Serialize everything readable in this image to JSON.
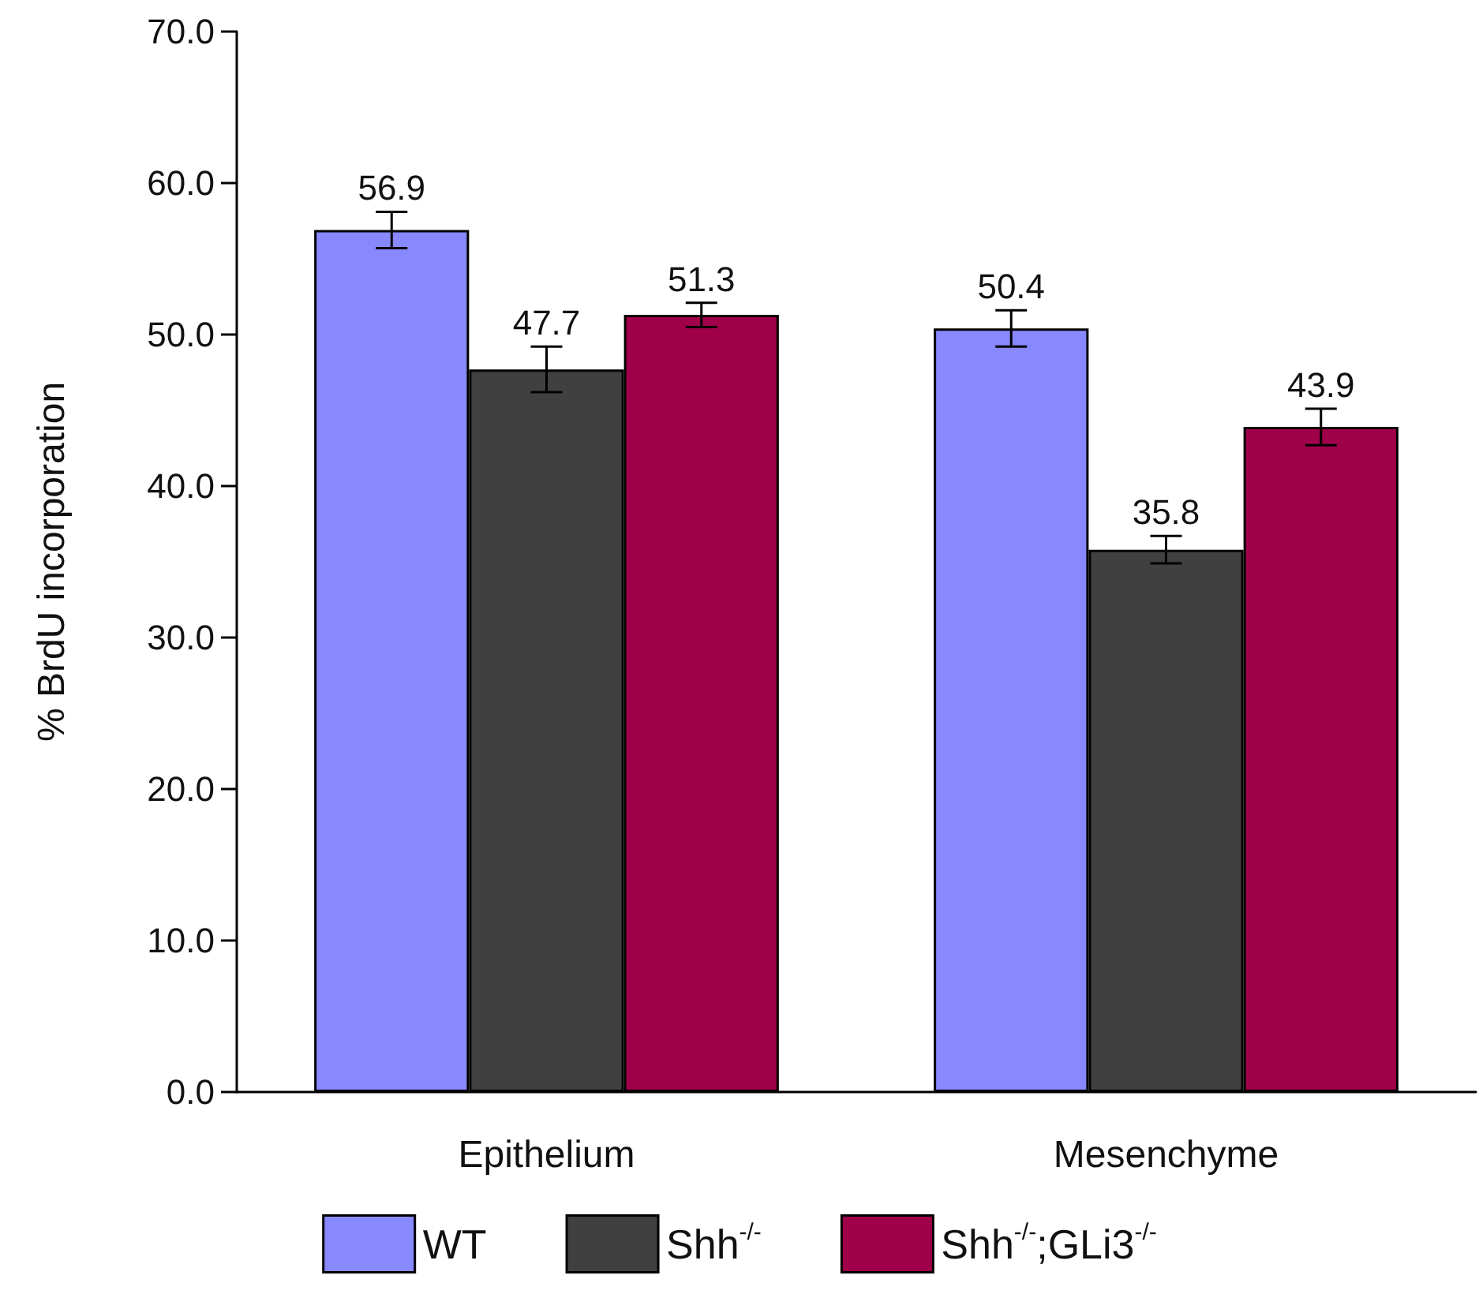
{
  "chart_data": {
    "type": "bar",
    "ylabel": "% BrdU incorporation",
    "categories": [
      "Epithelium",
      "Mesenchyme"
    ],
    "series": [
      {
        "name": "WT",
        "color": "#8888ff",
        "values": [
          56.9,
          50.4
        ],
        "errors": [
          1.2,
          1.2
        ]
      },
      {
        "name": "Shh$^{-/-}$",
        "color": "#404040",
        "values": [
          47.7,
          35.8
        ],
        "errors": [
          1.5,
          0.9
        ]
      },
      {
        "name": "Shh$^{-/-}$;GLi3$^{-/-}$",
        "color": "#a0004a",
        "values": [
          51.3,
          43.9
        ],
        "errors": [
          0.8,
          1.2
        ]
      }
    ],
    "ylim": [
      0,
      70
    ],
    "yticks": [
      {
        "value": 0,
        "label": "0.0"
      },
      {
        "value": 10,
        "label": "10.0"
      },
      {
        "value": 20,
        "label": "20.0"
      },
      {
        "value": 30,
        "label": "30.0"
      },
      {
        "value": 40,
        "label": "40.0"
      },
      {
        "value": 50,
        "label": "50.0"
      },
      {
        "value": 60,
        "label": "60.0"
      },
      {
        "value": 70,
        "label": "70.0"
      }
    ],
    "data_labels": true,
    "grid": false,
    "legend": "bottom"
  }
}
